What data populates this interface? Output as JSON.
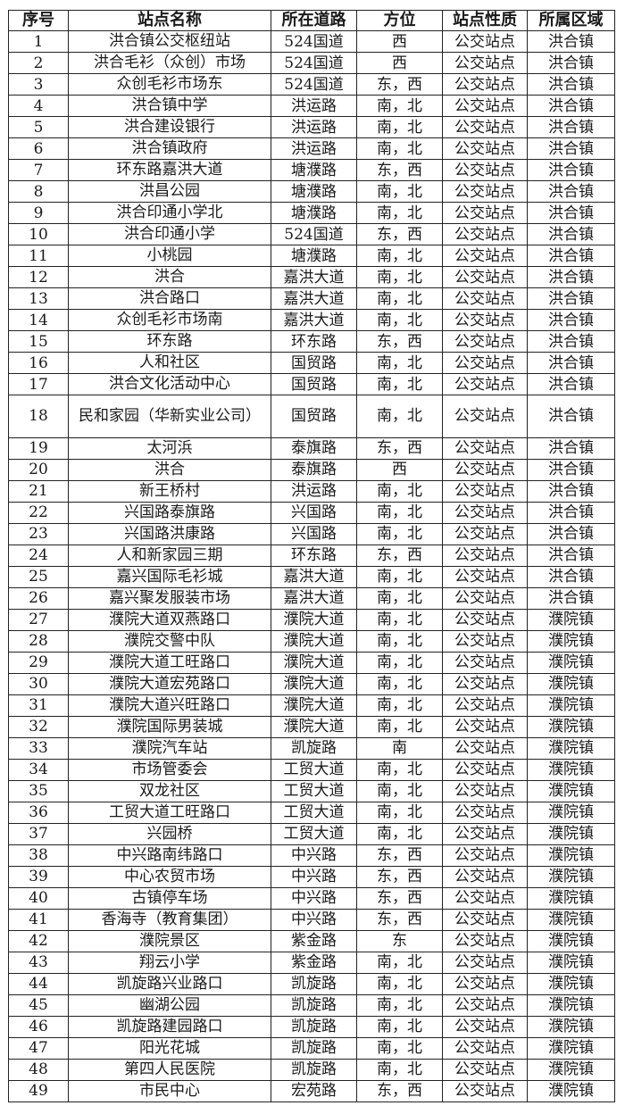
{
  "table": {
    "headers": [
      "序号",
      "站点名称",
      "所在道路",
      "方位",
      "站点性质",
      "所属区域"
    ],
    "rows": [
      [
        "1",
        "洪合镇公交枢纽站",
        "524国道",
        "西",
        "公交站点",
        "洪合镇"
      ],
      [
        "2",
        "洪合毛衫（众创）市场",
        "524国道",
        "西",
        "公交站点",
        "洪合镇"
      ],
      [
        "3",
        "众创毛衫市场东",
        "524国道",
        "东，西",
        "公交站点",
        "洪合镇"
      ],
      [
        "4",
        "洪合镇中学",
        "洪运路",
        "南，北",
        "公交站点",
        "洪合镇"
      ],
      [
        "5",
        "洪合建设银行",
        "洪运路",
        "南，北",
        "公交站点",
        "洪合镇"
      ],
      [
        "6",
        "洪合镇政府",
        "洪运路",
        "南，北",
        "公交站点",
        "洪合镇"
      ],
      [
        "7",
        "环东路嘉洪大道",
        "塘濮路",
        "东，西",
        "公交站点",
        "洪合镇"
      ],
      [
        "8",
        "洪昌公园",
        "塘濮路",
        "南，北",
        "公交站点",
        "洪合镇"
      ],
      [
        "9",
        "洪合印通小学北",
        "塘濮路",
        "南，北",
        "公交站点",
        "洪合镇"
      ],
      [
        "10",
        "洪合印通小学",
        "524国道",
        "东，西",
        "公交站点",
        "洪合镇"
      ],
      [
        "11",
        "小桃园",
        "塘濮路",
        "南，北",
        "公交站点",
        "洪合镇"
      ],
      [
        "12",
        "洪合",
        "嘉洪大道",
        "南，北",
        "公交站点",
        "洪合镇"
      ],
      [
        "13",
        "洪合路口",
        "嘉洪大道",
        "南，北",
        "公交站点",
        "洪合镇"
      ],
      [
        "14",
        "众创毛衫市场南",
        "嘉洪大道",
        "南，北",
        "公交站点",
        "洪合镇"
      ],
      [
        "15",
        "环东路",
        "环东路",
        "东，西",
        "公交站点",
        "洪合镇"
      ],
      [
        "16",
        "人和社区",
        "国贸路",
        "南，北",
        "公交站点",
        "洪合镇"
      ],
      [
        "17",
        "洪合文化活动中心",
        "国贸路",
        "南，北",
        "公交站点",
        "洪合镇"
      ],
      [
        "18",
        "民和家园（华新实业公司）",
        "国贸路",
        "南，北",
        "公交站点",
        "洪合镇"
      ],
      [
        "19",
        "太河浜",
        "泰旗路",
        "东，西",
        "公交站点",
        "洪合镇"
      ],
      [
        "20",
        "洪合",
        "泰旗路",
        "西",
        "公交站点",
        "洪合镇"
      ],
      [
        "21",
        "新王桥村",
        "洪运路",
        "南，北",
        "公交站点",
        "洪合镇"
      ],
      [
        "22",
        "兴国路泰旗路",
        "兴国路",
        "南，北",
        "公交站点",
        "洪合镇"
      ],
      [
        "23",
        "兴国路洪康路",
        "兴国路",
        "南，北",
        "公交站点",
        "洪合镇"
      ],
      [
        "24",
        "人和新家园三期",
        "环东路",
        "东，西",
        "公交站点",
        "洪合镇"
      ],
      [
        "25",
        "嘉兴国际毛衫城",
        "嘉洪大道",
        "南，北",
        "公交站点",
        "洪合镇"
      ],
      [
        "26",
        "嘉兴聚发服装市场",
        "嘉洪大道",
        "南，北",
        "公交站点",
        "洪合镇"
      ],
      [
        "27",
        "濮院大道双燕路口",
        "濮院大道",
        "南，北",
        "公交站点",
        "濮院镇"
      ],
      [
        "28",
        "濮院交警中队",
        "濮院大道",
        "南，北",
        "公交站点",
        "濮院镇"
      ],
      [
        "29",
        "濮院大道工旺路口",
        "濮院大道",
        "南，北",
        "公交站点",
        "濮院镇"
      ],
      [
        "30",
        "濮院大道宏苑路口",
        "濮院大道",
        "南，北",
        "公交站点",
        "濮院镇"
      ],
      [
        "31",
        "濮院大道兴旺路口",
        "濮院大道",
        "南，北",
        "公交站点",
        "濮院镇"
      ],
      [
        "32",
        "濮院国际男装城",
        "濮院大道",
        "南，北",
        "公交站点",
        "濮院镇"
      ],
      [
        "33",
        "濮院汽车站",
        "凯旋路",
        "南",
        "公交站点",
        "濮院镇"
      ],
      [
        "34",
        "市场管委会",
        "工贸大道",
        "南，北",
        "公交站点",
        "濮院镇"
      ],
      [
        "35",
        "双龙社区",
        "工贸大道",
        "南，北",
        "公交站点",
        "濮院镇"
      ],
      [
        "36",
        "工贸大道工旺路口",
        "工贸大道",
        "南，北",
        "公交站点",
        "濮院镇"
      ],
      [
        "37",
        "兴园桥",
        "工贸大道",
        "南，北",
        "公交站点",
        "濮院镇"
      ],
      [
        "38",
        "中兴路南纬路口",
        "中兴路",
        "东，西",
        "公交站点",
        "濮院镇"
      ],
      [
        "39",
        "中心农贸市场",
        "中兴路",
        "东，西",
        "公交站点",
        "濮院镇"
      ],
      [
        "40",
        "古镇停车场",
        "中兴路",
        "东，西",
        "公交站点",
        "濮院镇"
      ],
      [
        "41",
        "香海寺（教育集团）",
        "中兴路",
        "东，西",
        "公交站点",
        "濮院镇"
      ],
      [
        "42",
        "濮院景区",
        "紫金路",
        "东",
        "公交站点",
        "濮院镇"
      ],
      [
        "43",
        "翔云小学",
        "紫金路",
        "南，北",
        "公交站点",
        "濮院镇"
      ],
      [
        "44",
        "凯旋路兴业路口",
        "凯旋路",
        "南，北",
        "公交站点",
        "濮院镇"
      ],
      [
        "45",
        "幽湖公园",
        "凯旋路",
        "南，北",
        "公交站点",
        "濮院镇"
      ],
      [
        "46",
        "凯旋路建园路口",
        "凯旋路",
        "南，北",
        "公交站点",
        "濮院镇"
      ],
      [
        "47",
        "阳光花城",
        "凯旋路",
        "南，北",
        "公交站点",
        "濮院镇"
      ],
      [
        "48",
        "第四人民医院",
        "凯旋路",
        "南，北",
        "公交站点",
        "濮院镇"
      ],
      [
        "49",
        "市民中心",
        "宏苑路",
        "东，西",
        "公交站点",
        "濮院镇"
      ]
    ]
  }
}
